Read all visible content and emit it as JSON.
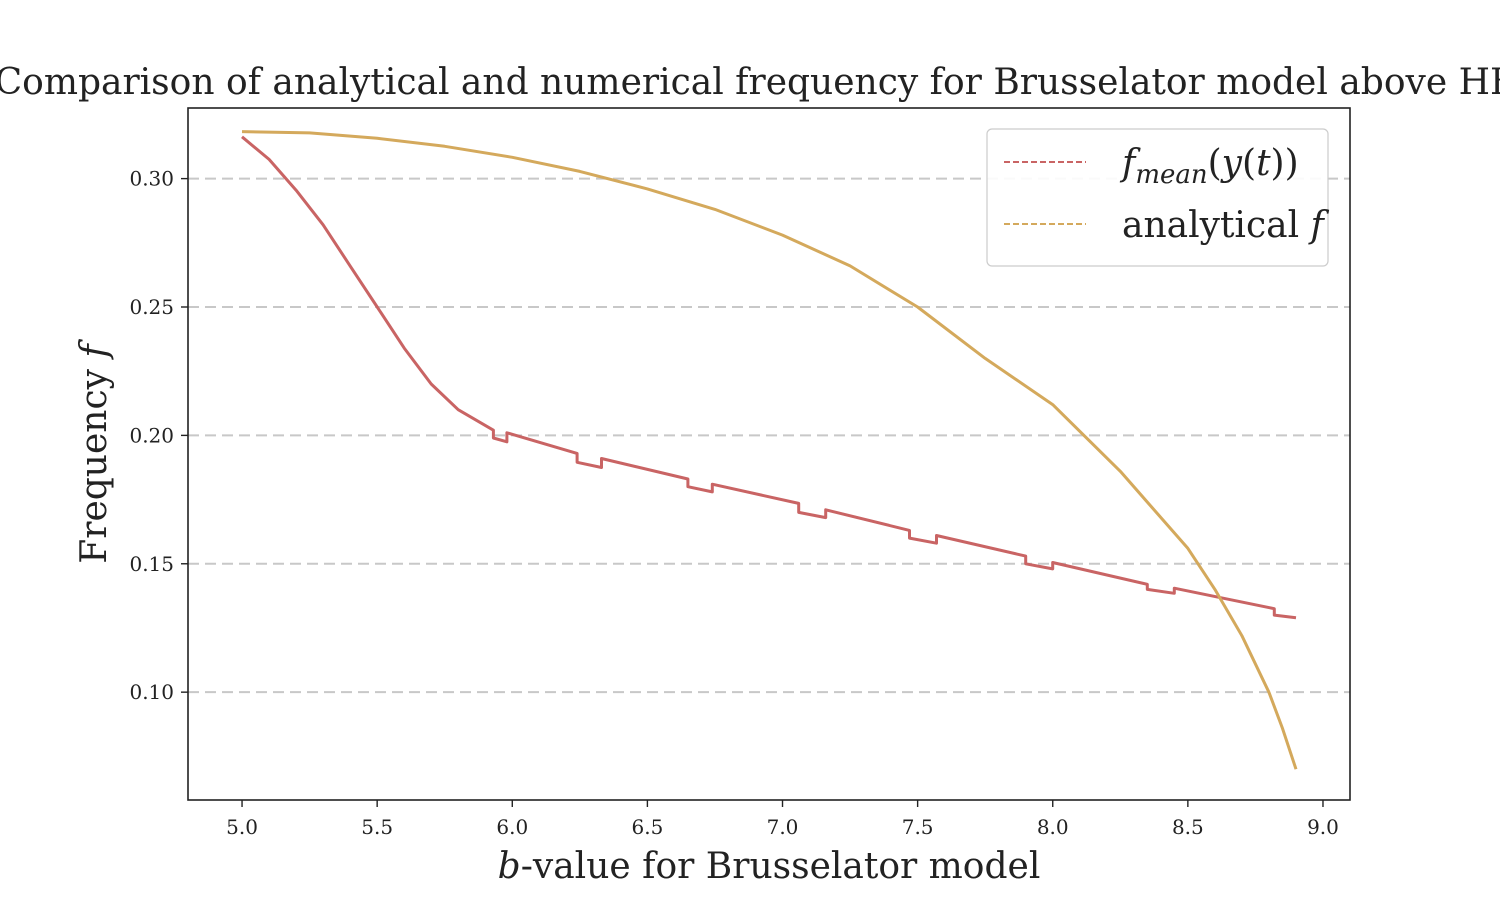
{
  "chart_data": {
    "type": "line",
    "title": "Comparison of analytical and numerical frequency for Brusselator model above HBF",
    "xlabel_var": "b",
    "xlabel_rest": "-value for Brusselator model",
    "ylabel_main": "Frequency ",
    "ylabel_var": "f",
    "xlim": [
      4.8,
      9.1
    ],
    "ylim": [
      0.058,
      0.3275
    ],
    "xticks": [
      5.0,
      5.5,
      6.0,
      6.5,
      7.0,
      7.5,
      8.0,
      8.5,
      9.0
    ],
    "xtick_labels": [
      "5.0",
      "5.5",
      "6.0",
      "6.5",
      "7.0",
      "7.5",
      "8.0",
      "8.5",
      "9.0"
    ],
    "yticks": [
      0.1,
      0.15,
      0.2,
      0.25,
      0.3
    ],
    "ytick_labels": [
      "0.10",
      "0.15",
      "0.20",
      "0.25",
      "0.30"
    ],
    "grid": "horizontal dashed",
    "legend_placement": "top-right",
    "series": [
      {
        "name": "f_mean(y(t))",
        "legend_label_parts": [
          "f",
          "mean",
          "(",
          "y",
          "(",
          "t",
          "))"
        ],
        "color": "#c96464",
        "style": "dashed",
        "points": [
          [
            5.0,
            0.3163
          ],
          [
            5.1,
            0.3075
          ],
          [
            5.2,
            0.2955
          ],
          [
            5.3,
            0.282
          ],
          [
            5.4,
            0.266
          ],
          [
            5.5,
            0.25
          ],
          [
            5.6,
            0.234
          ],
          [
            5.7,
            0.22
          ],
          [
            5.8,
            0.21
          ],
          [
            5.93,
            0.202
          ],
          [
            5.93,
            0.199
          ],
          [
            5.98,
            0.1975
          ],
          [
            5.98,
            0.201
          ],
          [
            6.24,
            0.193
          ],
          [
            6.24,
            0.1895
          ],
          [
            6.33,
            0.1875
          ],
          [
            6.33,
            0.191
          ],
          [
            6.65,
            0.183
          ],
          [
            6.65,
            0.18
          ],
          [
            6.74,
            0.178
          ],
          [
            6.74,
            0.181
          ],
          [
            7.06,
            0.1735
          ],
          [
            7.06,
            0.17
          ],
          [
            7.16,
            0.168
          ],
          [
            7.16,
            0.171
          ],
          [
            7.47,
            0.163
          ],
          [
            7.47,
            0.16
          ],
          [
            7.57,
            0.158
          ],
          [
            7.57,
            0.161
          ],
          [
            7.9,
            0.153
          ],
          [
            7.9,
            0.15
          ],
          [
            8.0,
            0.148
          ],
          [
            8.0,
            0.1505
          ],
          [
            8.35,
            0.142
          ],
          [
            8.35,
            0.14
          ],
          [
            8.45,
            0.1385
          ],
          [
            8.45,
            0.1405
          ],
          [
            8.82,
            0.1325
          ],
          [
            8.82,
            0.13
          ],
          [
            8.9,
            0.129
          ]
        ]
      },
      {
        "name": "analytical f",
        "legend_label_parts": [
          "analytical ",
          "f"
        ],
        "color": "#d4a95c",
        "style": "dashed",
        "points": [
          [
            5.0,
            0.3183
          ],
          [
            5.25,
            0.3178
          ],
          [
            5.5,
            0.3157
          ],
          [
            5.75,
            0.3126
          ],
          [
            6.0,
            0.3083
          ],
          [
            6.25,
            0.3028
          ],
          [
            6.5,
            0.296
          ],
          [
            6.75,
            0.288
          ],
          [
            7.0,
            0.278
          ],
          [
            7.25,
            0.266
          ],
          [
            7.5,
            0.25
          ],
          [
            7.75,
            0.23
          ],
          [
            8.0,
            0.212
          ],
          [
            8.25,
            0.186
          ],
          [
            8.5,
            0.156
          ],
          [
            8.6,
            0.14
          ],
          [
            8.7,
            0.122
          ],
          [
            8.8,
            0.1
          ],
          [
            8.85,
            0.086
          ],
          [
            8.9,
            0.07
          ]
        ]
      }
    ]
  }
}
